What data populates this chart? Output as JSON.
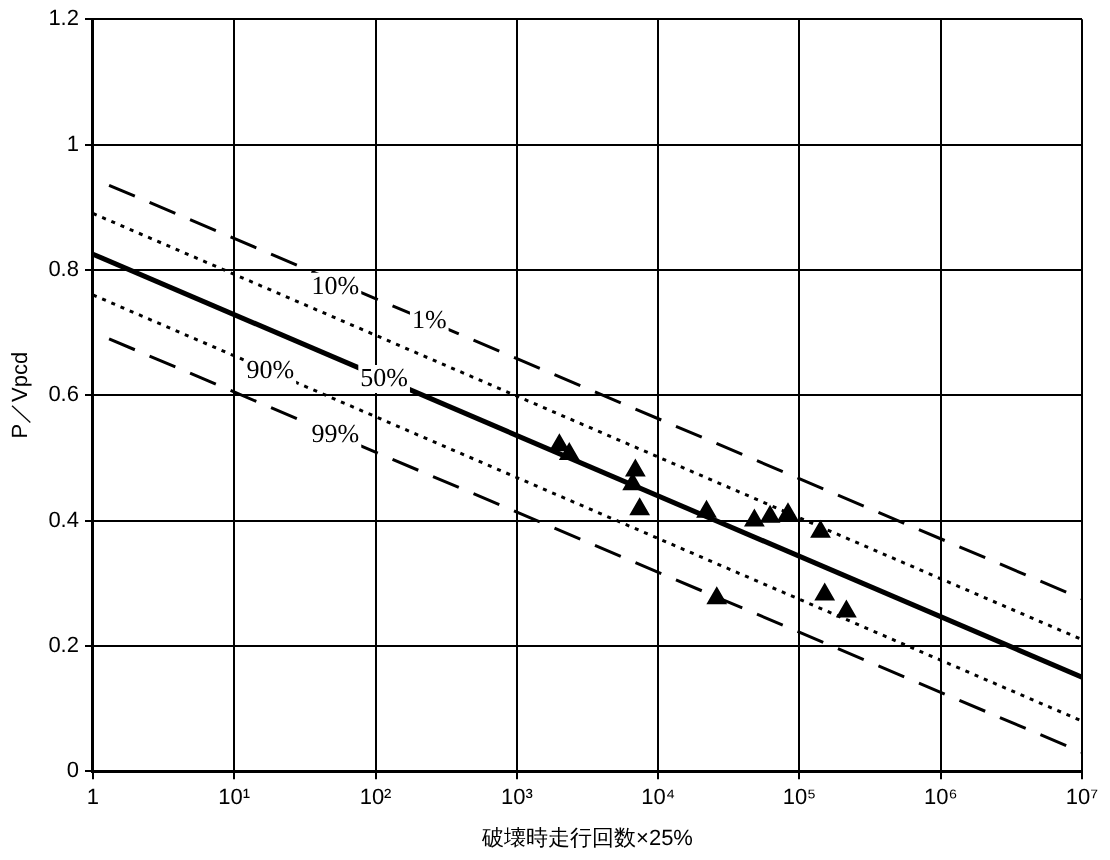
{
  "chart_data": {
    "type": "line",
    "xlabel": "破壊時走行回数×25%",
    "ylabel": "P／Vpcd",
    "log": "x",
    "xlim": [
      1,
      10000000
    ],
    "ylim": [
      0,
      1.2
    ],
    "xticks": [
      1,
      {
        "value": 10,
        "label": "10¹"
      },
      {
        "value": 100,
        "label": "10²"
      },
      {
        "value": 1000,
        "label": "10³"
      },
      {
        "value": 10000,
        "label": "10⁴"
      },
      {
        "value": 100000,
        "label": "10⁵"
      },
      {
        "value": 1000000,
        "label": "10⁶"
      },
      {
        "value": 10000000,
        "label": "10⁷"
      }
    ],
    "yticks": [
      0,
      0.2,
      0.4,
      0.6,
      0.8,
      1,
      1.2
    ],
    "grid": true,
    "legend": false,
    "series": [
      {
        "color": "#000000",
        "line_style": "solid",
        "marker": "none",
        "x": [
          1,
          10000000
        ],
        "values": [
          0.825,
          0.15
        ]
      },
      {
        "color": "#000000",
        "line_style": "dotted",
        "marker": "none",
        "x": [
          1,
          10000000
        ],
        "values": [
          0.89,
          0.21
        ]
      },
      {
        "color": "#000000",
        "line_style": "dotted",
        "marker": "none",
        "x": [
          1,
          10000000
        ],
        "values": [
          0.76,
          0.08
        ]
      },
      {
        "color": "#000000",
        "line_style": "dashed",
        "marker": "none",
        "x": [
          1.3,
          10000000
        ],
        "values": [
          0.935,
          0.275
        ]
      },
      {
        "color": "#000000",
        "line_style": "dashed",
        "marker": "none",
        "x": [
          1.3,
          10000000
        ],
        "values": [
          0.69,
          0.03
        ]
      },
      {
        "type": "scatter",
        "color": "#000000",
        "marker": "triangle",
        "x": [
          2000,
          2350,
          6900,
          6600,
          7400,
          22000,
          48000,
          62000,
          83000,
          141000,
          26000,
          151000,
          215000
        ],
        "values": [
          0.52,
          0.506,
          0.48,
          0.458,
          0.418,
          0.414,
          0.4,
          0.406,
          0.41,
          0.382,
          0.276,
          0.282,
          0.255
        ]
      }
    ],
    "annotations": [
      {
        "text": "10%",
        "x": 52,
        "y": 0.773
      },
      {
        "text": "1%",
        "x": 240,
        "y": 0.718
      },
      {
        "text": "90%",
        "x": 18,
        "y": 0.638
      },
      {
        "text": "50%",
        "x": 115,
        "y": 0.626
      },
      {
        "text": "99%",
        "x": 52,
        "y": 0.537
      }
    ]
  }
}
